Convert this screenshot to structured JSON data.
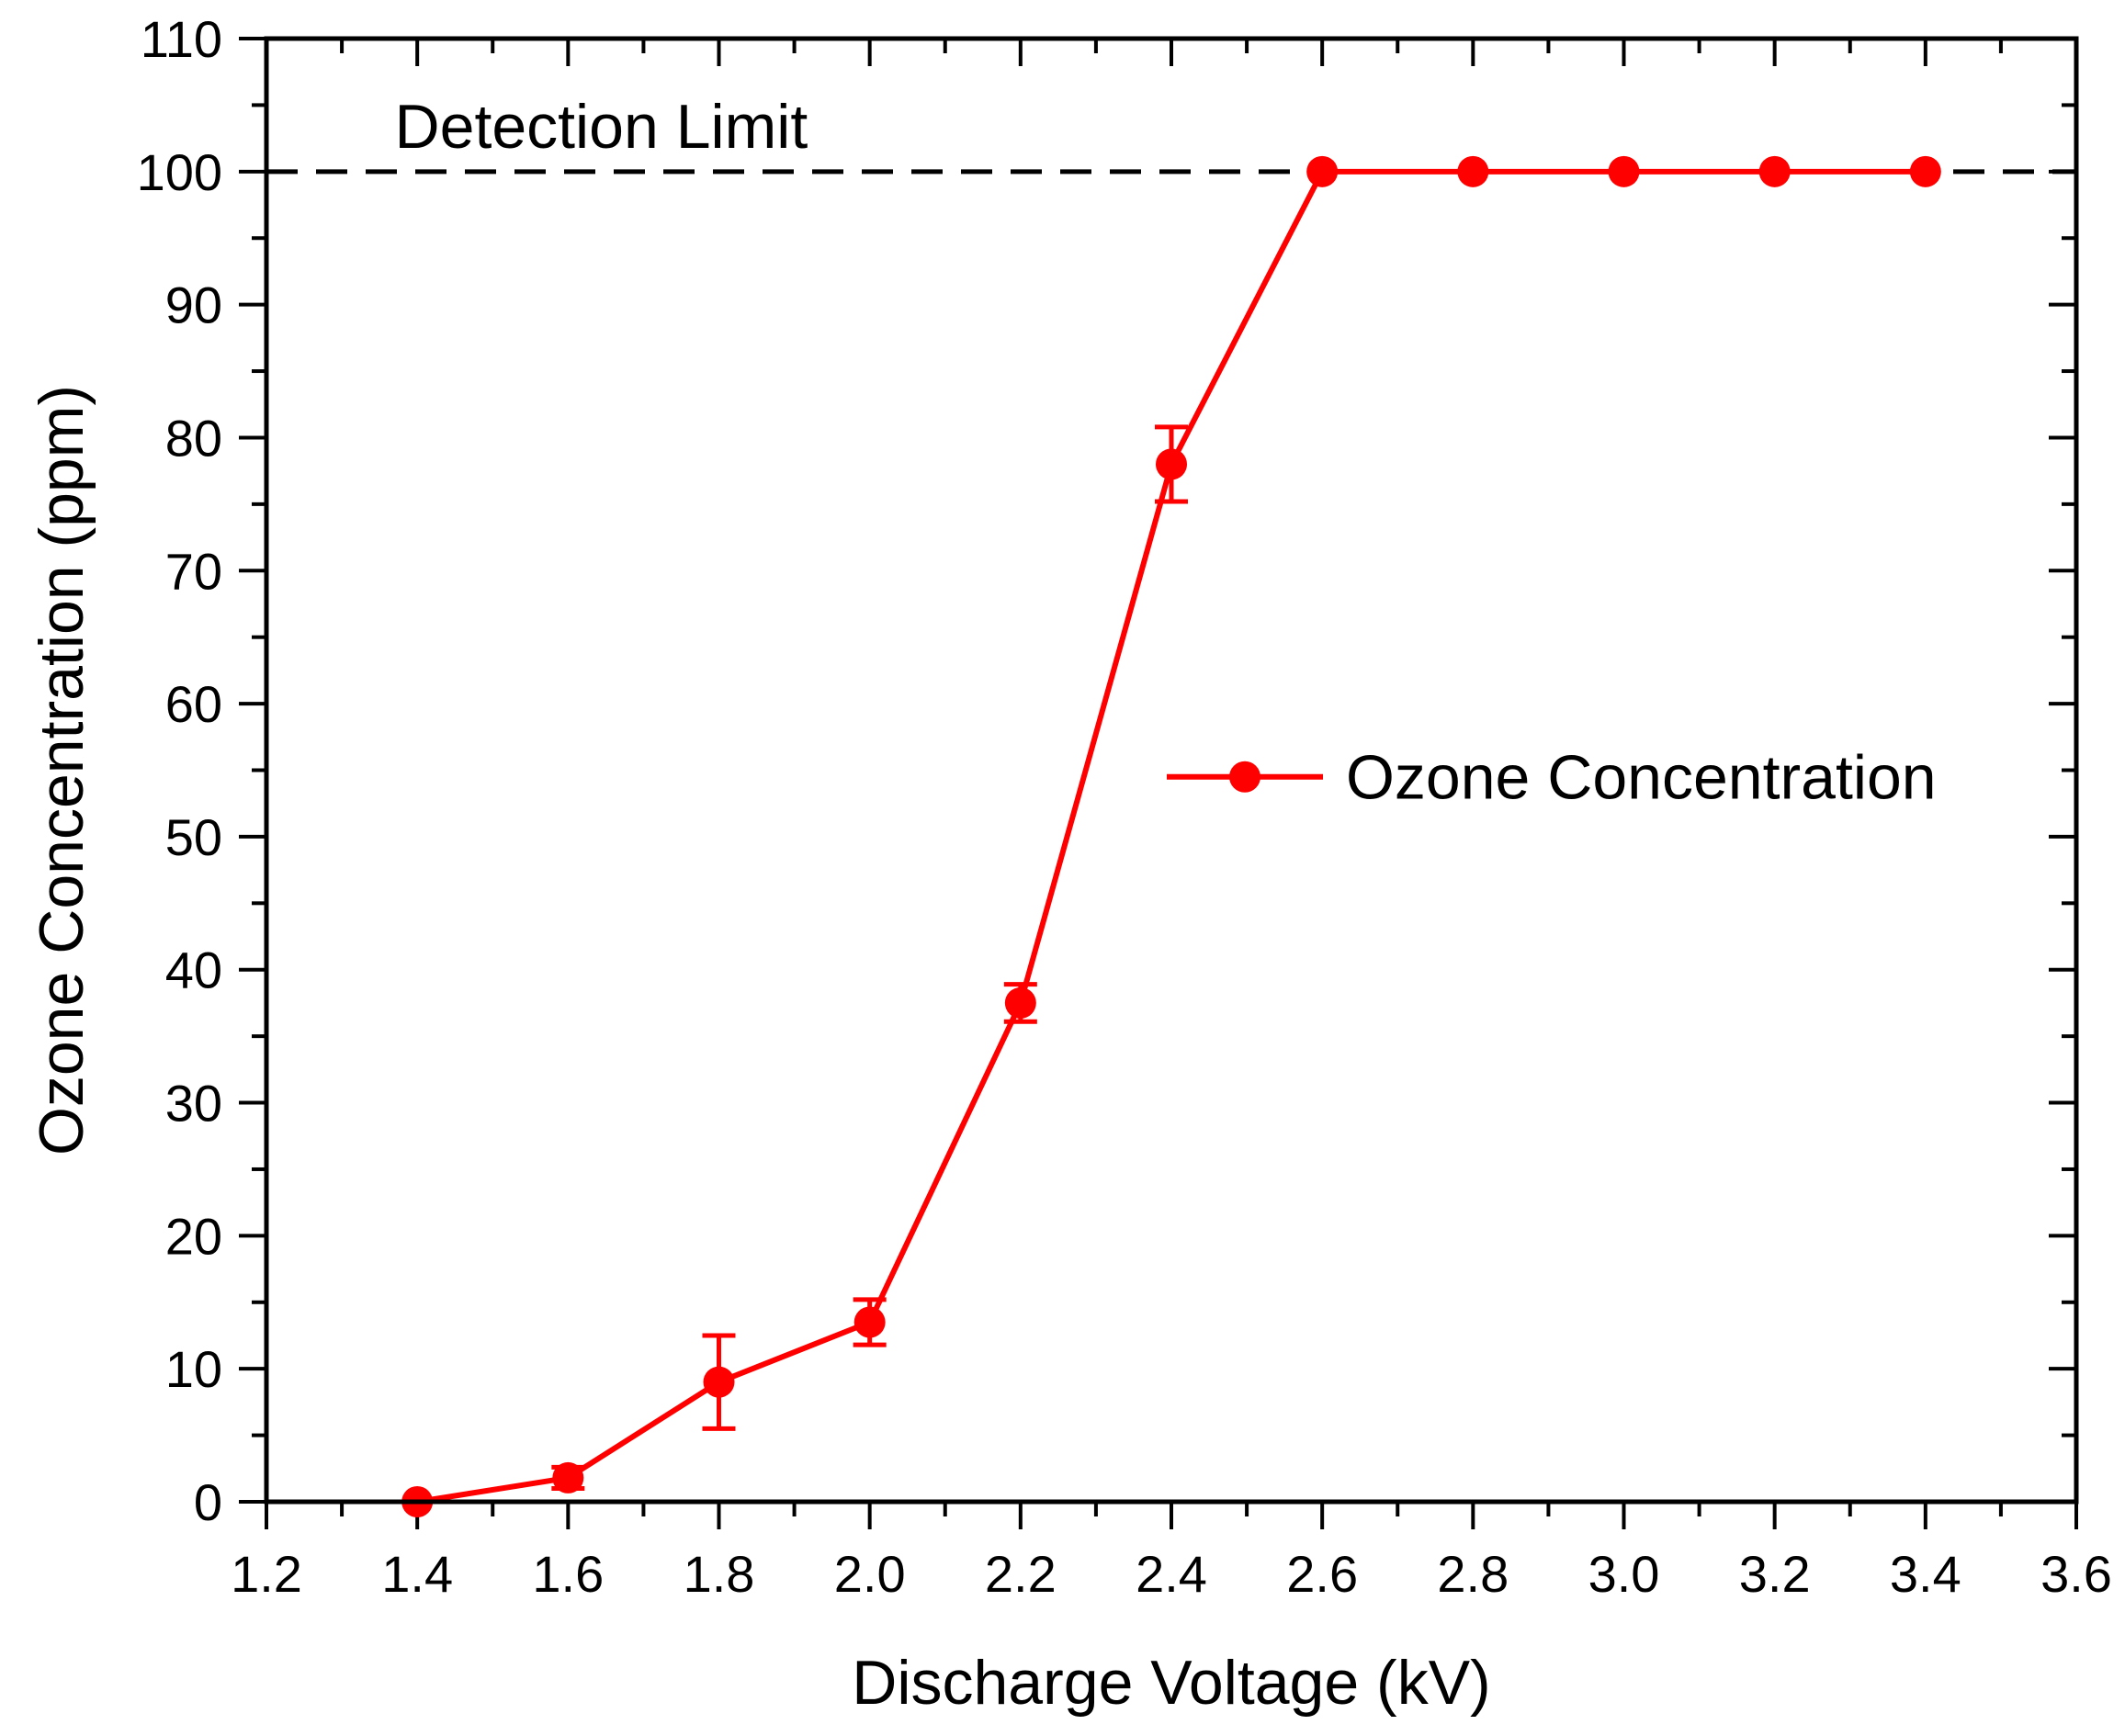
{
  "chart_data": {
    "type": "line",
    "title": "",
    "xlabel": "Discharge Voltage (kV)",
    "ylabel": "Ozone Concentration (ppm)",
    "xlim": [
      1.2,
      3.6
    ],
    "ylim": [
      0,
      110
    ],
    "x_ticks": [
      "1.2",
      "1.4",
      "1.6",
      "1.8",
      "2.0",
      "2.2",
      "2.4",
      "2.6",
      "2.8",
      "3.0",
      "3.2",
      "3.4",
      "3.6"
    ],
    "y_ticks": [
      "0",
      "10",
      "20",
      "30",
      "40",
      "50",
      "60",
      "70",
      "80",
      "90",
      "100",
      "110"
    ],
    "grid": false,
    "legend_position": "center-right",
    "series": [
      {
        "name": "Ozone Concentration",
        "color": "#ff0000",
        "x": [
          1.4,
          1.6,
          1.8,
          2.0,
          2.2,
          2.4,
          2.6,
          2.8,
          3.0,
          3.2,
          3.4
        ],
        "y": [
          0,
          1.8,
          9.0,
          13.5,
          37.5,
          78.0,
          100,
          100,
          100,
          100,
          100
        ],
        "error": [
          0,
          0.8,
          3.5,
          1.7,
          1.4,
          2.8,
          0,
          0,
          0,
          0,
          0
        ]
      }
    ],
    "reference_line": {
      "label": "Detection Limit",
      "y": 100,
      "style": "dashed",
      "color": "#000000"
    }
  }
}
